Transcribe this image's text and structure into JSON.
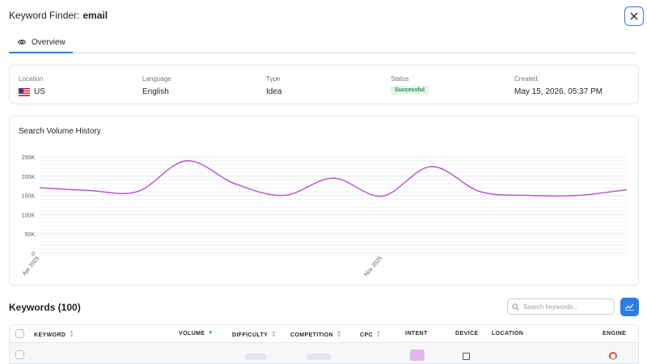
{
  "header": {
    "title_prefix": "Keyword Finder:",
    "keyword": "email",
    "close_icon": "close-icon"
  },
  "tabs": [
    {
      "label": "Overview",
      "icon": "eye-icon",
      "active": true
    }
  ],
  "info": {
    "location": {
      "label": "Location",
      "value": "US",
      "icon": "us-flag-icon"
    },
    "language": {
      "label": "Language",
      "value": "English"
    },
    "type": {
      "label": "Type",
      "value": "Idea"
    },
    "status": {
      "label": "Status",
      "value": "Successful",
      "color": "#2f8a4c"
    },
    "created": {
      "label": "Created:",
      "value": "May 15, 2026, 05:37 PM"
    }
  },
  "chart_data": {
    "type": "line",
    "title": "Search Volume History",
    "xlabel": "",
    "ylabel": "",
    "ylim": [
      0,
      250000
    ],
    "y_ticks": [
      "0",
      "50K",
      "100K",
      "150K",
      "200K",
      "250K"
    ],
    "x_tick_labels": [
      "Apr 2025",
      "Nov 2025"
    ],
    "x": [
      "2025-04",
      "2025-05",
      "2025-06",
      "2025-07",
      "2025-08",
      "2025-09",
      "2025-10",
      "2025-11",
      "2025-12",
      "2026-01",
      "2026-02",
      "2026-03",
      "2026-04"
    ],
    "series": [
      {
        "values": [
          170000,
          163000,
          160000,
          240000,
          180000,
          150000,
          195000,
          148000,
          225000,
          160000,
          150000,
          150000,
          165000
        ]
      }
    ],
    "grid": true,
    "color": "#b84ed8"
  },
  "keywords": {
    "title": "Keywords (100)",
    "search_placeholder": "Search keywords...",
    "search_icon": "search-icon",
    "trend_icon": "trend-chart-icon",
    "columns": [
      "KEYWORD",
      "VOLUME",
      "DIFFICULTY",
      "COMPETITION",
      "CPC",
      "INTENT",
      "DEVICE",
      "LOCATION",
      "ENGINE"
    ],
    "sorted_column": "VOLUME",
    "rows": [
      {
        "keyword": "…",
        "volume": "…",
        "cpc": "…"
      }
    ]
  },
  "colors": {
    "accent": "#2b7de9",
    "line": "#b84ed8"
  }
}
